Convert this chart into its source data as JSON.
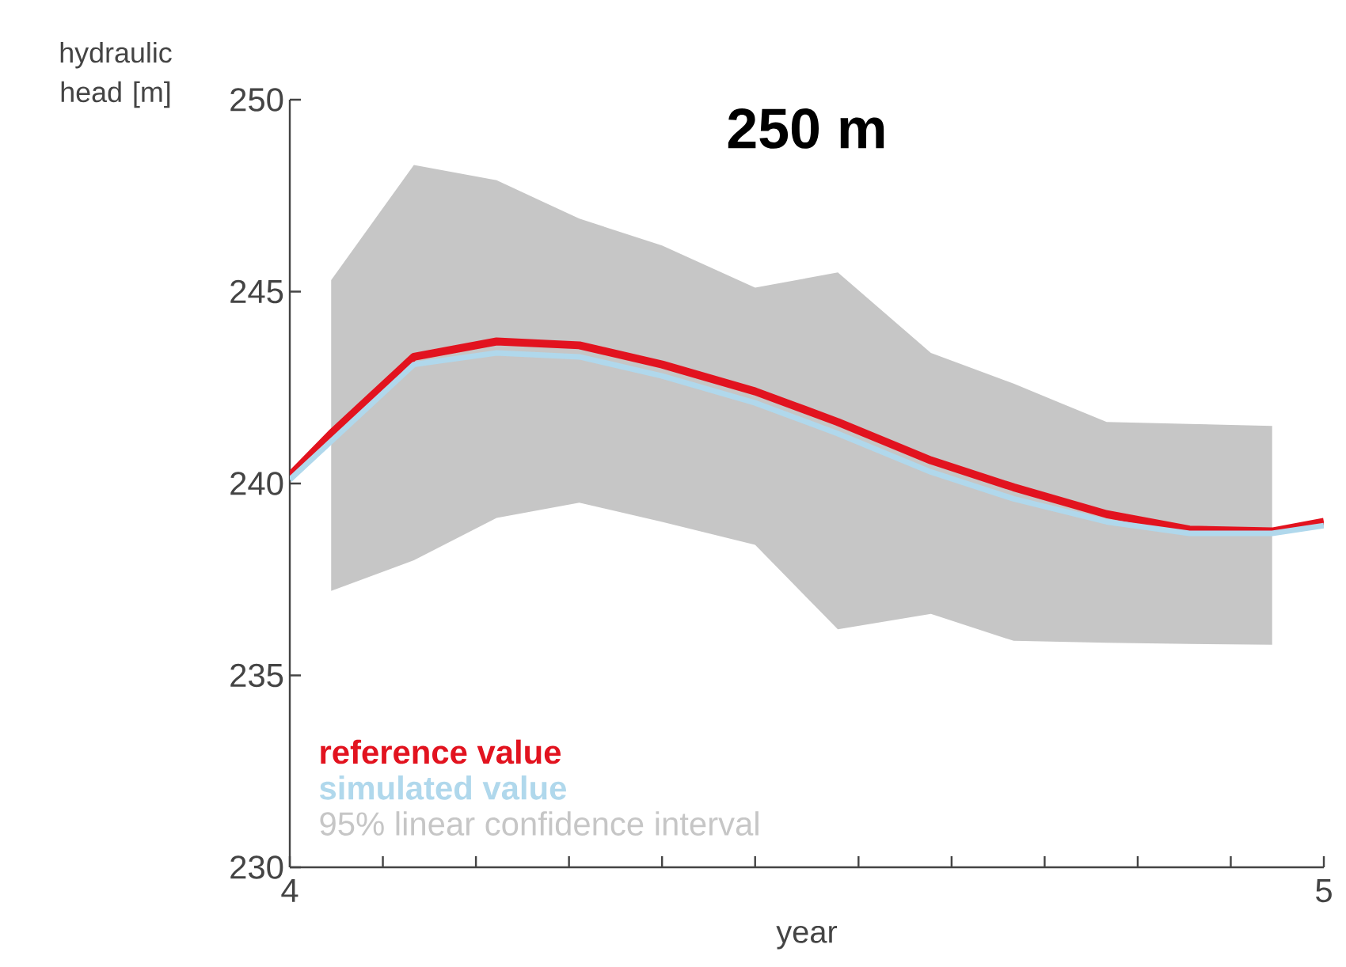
{
  "chart_data": {
    "type": "line",
    "title": "250 m",
    "xlabel": "year",
    "ylabel": "hydraulic head [m]",
    "annotations": [
      "95% linear confidence interval"
    ],
    "x": [
      4.0,
      4.04,
      4.12,
      4.2,
      4.28,
      4.36,
      4.45,
      4.53,
      4.62,
      4.7,
      4.79,
      4.87,
      4.95,
      5.0
    ],
    "xlim": [
      4,
      5
    ],
    "ylim": [
      230,
      250
    ],
    "xticks": [
      4,
      {
        "value": 4.09,
        "label": null
      },
      {
        "value": 4.18,
        "label": null
      },
      {
        "value": 4.27,
        "label": null
      },
      {
        "value": 4.36,
        "label": null
      },
      {
        "value": 4.45,
        "label": null
      },
      {
        "value": 4.55,
        "label": null
      },
      {
        "value": 4.64,
        "label": null
      },
      {
        "value": 4.73,
        "label": null
      },
      {
        "value": 4.82,
        "label": null
      },
      {
        "value": 4.91,
        "label": null
      },
      5
    ],
    "yticks": [
      230,
      235,
      240,
      245,
      250
    ],
    "legend": "bottom left",
    "series": [
      {
        "name": "reference value",
        "color": "#e2131f",
        "values": [
          240.2,
          241.3,
          243.3,
          243.7,
          243.6,
          243.1,
          242.4,
          241.6,
          240.6,
          239.9,
          239.2,
          238.8,
          238.75,
          239.0
        ]
      },
      {
        "name": "simulated value",
        "color": "#b0d8ec",
        "values": [
          240.1,
          241.1,
          243.1,
          243.4,
          243.3,
          242.8,
          242.1,
          241.3,
          240.3,
          239.6,
          239.0,
          238.7,
          238.7,
          238.9
        ],
        "lower": [
          null,
          237.2,
          238.0,
          239.1,
          239.5,
          239.0,
          238.4,
          236.2,
          236.6,
          235.9,
          235.85,
          235.82,
          235.8,
          null
        ],
        "upper": [
          null,
          245.3,
          248.3,
          247.9,
          246.9,
          246.2,
          245.1,
          245.5,
          243.4,
          242.6,
          241.6,
          241.55,
          241.5,
          null
        ]
      }
    ]
  }
}
